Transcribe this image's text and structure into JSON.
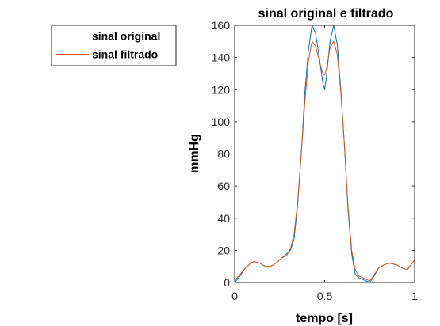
{
  "chart_data": {
    "type": "line",
    "title": "sinal original e filtrado",
    "xlabel": "tempo [s]",
    "ylabel": "mmHg",
    "xlim": [
      0,
      1
    ],
    "ylim": [
      0,
      160
    ],
    "xticks": [
      0,
      0.5,
      1
    ],
    "yticks": [
      0,
      20,
      40,
      60,
      80,
      100,
      120,
      140,
      160
    ],
    "xtick_labels": [
      "0",
      "0.5",
      "1"
    ],
    "ytick_labels": [
      "0",
      "20",
      "40",
      "60",
      "80",
      "100",
      "120",
      "140",
      "160"
    ],
    "grid": false,
    "legend_position": "outside-left",
    "series": [
      {
        "name": "sinal original",
        "color": "#0072BD",
        "x": [
          0,
          0.03,
          0.06,
          0.09,
          0.11,
          0.14,
          0.17,
          0.2,
          0.23,
          0.26,
          0.29,
          0.31,
          0.33,
          0.35,
          0.37,
          0.39,
          0.41,
          0.43,
          0.45,
          0.47,
          0.49,
          0.5,
          0.51,
          0.53,
          0.55,
          0.57,
          0.59,
          0.61,
          0.63,
          0.65,
          0.67,
          0.69,
          0.71,
          0.73,
          0.75,
          0.77,
          0.8,
          0.83,
          0.86,
          0.9,
          0.93,
          0.96,
          1.0
        ],
        "y": [
          0,
          4,
          9,
          12,
          13,
          12,
          10,
          10,
          12,
          15,
          18,
          20,
          27,
          48,
          80,
          118,
          145,
          160,
          155,
          140,
          124,
          120,
          128,
          150,
          160,
          148,
          120,
          85,
          45,
          18,
          5,
          3,
          2,
          1,
          0,
          3,
          9,
          11,
          12,
          11,
          9,
          8,
          14
        ]
      },
      {
        "name": "sinal filtrado",
        "color": "#D95319",
        "x": [
          0,
          0.03,
          0.06,
          0.09,
          0.11,
          0.14,
          0.17,
          0.2,
          0.23,
          0.26,
          0.29,
          0.31,
          0.33,
          0.35,
          0.37,
          0.39,
          0.41,
          0.43,
          0.45,
          0.47,
          0.49,
          0.5,
          0.51,
          0.53,
          0.55,
          0.57,
          0.59,
          0.61,
          0.63,
          0.65,
          0.67,
          0.69,
          0.71,
          0.73,
          0.75,
          0.77,
          0.8,
          0.83,
          0.86,
          0.9,
          0.93,
          0.96,
          1.0
        ],
        "y": [
          1,
          5,
          9,
          12,
          13,
          12,
          10,
          10,
          12,
          15,
          17,
          21,
          30,
          50,
          80,
          112,
          138,
          150,
          147,
          138,
          130,
          129,
          133,
          146,
          150,
          142,
          118,
          85,
          47,
          20,
          8,
          4,
          3,
          2,
          1,
          4,
          9,
          11,
          12,
          11,
          9,
          8,
          14
        ]
      }
    ]
  }
}
